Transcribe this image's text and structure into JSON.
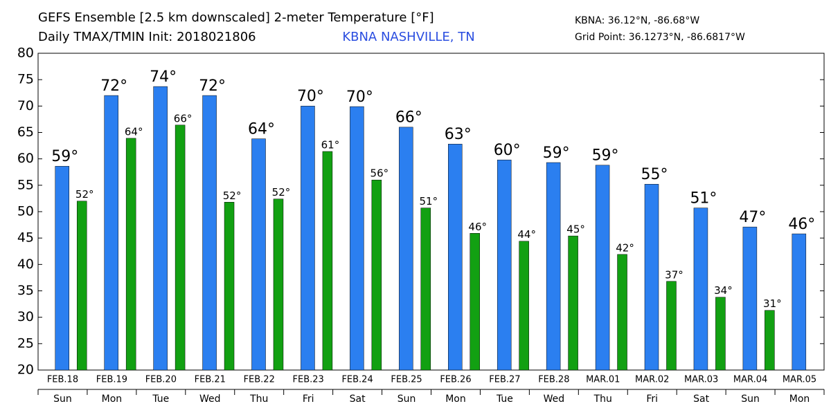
{
  "chart_data": {
    "type": "bar",
    "title": "GEFS Ensemble [2.5 km downscaled] 2-meter Temperature [°F]",
    "subtitle": "Daily TMAX/TMIN Init: 2018021806",
    "location": "KBNA NASHVILLE, TN",
    "station": "KBNA: 36.12°N, -86.68°W",
    "grid_point": "Grid Point: 36.1273°N, -86.6817°W",
    "categories": [
      "FEB.18",
      "FEB.19",
      "FEB.20",
      "FEB.21",
      "FEB.22",
      "FEB.23",
      "FEB.24",
      "FEB.25",
      "FEB.26",
      "FEB.27",
      "FEB.28",
      "MAR.01",
      "MAR.02",
      "MAR.03",
      "MAR.04",
      "MAR.05"
    ],
    "weekdays": [
      "Sun",
      "Mon",
      "Tue",
      "Wed",
      "Thu",
      "Fri",
      "Sat",
      "Sun",
      "Mon",
      "Tue",
      "Wed",
      "Thu",
      "Fri",
      "Sat",
      "Sun",
      "Mon"
    ],
    "series": [
      {
        "name": "TMAX",
        "color": "#2b7ff0",
        "values": [
          58.6,
          72.0,
          73.7,
          72.0,
          63.8,
          70.0,
          69.9,
          66.0,
          62.8,
          59.8,
          59.3,
          58.8,
          55.2,
          50.7,
          47.1,
          45.8
        ],
        "value_labels": [
          "59°",
          "72°",
          "74°",
          "72°",
          "64°",
          "70°",
          "70°",
          "66°",
          "63°",
          "60°",
          "59°",
          "59°",
          "55°",
          "51°",
          "47°",
          "46°"
        ]
      },
      {
        "name": "TMIN",
        "color": "#12a012",
        "values": [
          52.0,
          63.9,
          66.4,
          51.8,
          52.4,
          61.4,
          56.0,
          50.7,
          45.9,
          44.4,
          45.4,
          41.9,
          36.8,
          33.8,
          31.3,
          null
        ],
        "value_labels": [
          "52°",
          "64°",
          "66°",
          "52°",
          "52°",
          "61°",
          "56°",
          "51°",
          "46°",
          "44°",
          "45°",
          "42°",
          "37°",
          "34°",
          "31°",
          null
        ]
      }
    ],
    "ylim": [
      20,
      80
    ],
    "yticks": [
      20,
      25,
      30,
      35,
      40,
      45,
      50,
      55,
      60,
      65,
      70,
      75,
      80
    ],
    "grid": false
  }
}
